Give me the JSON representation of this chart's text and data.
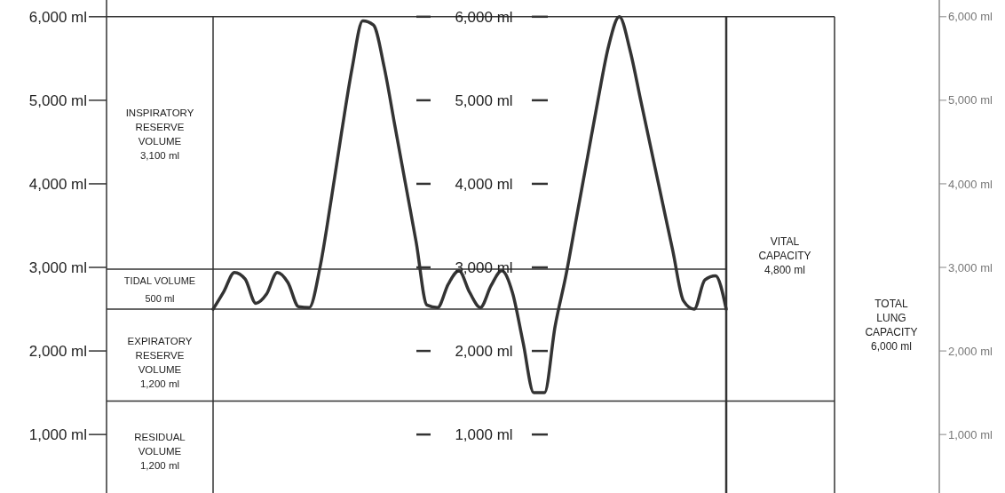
{
  "chart_data": {
    "type": "line",
    "categories": [
      null,
      null,
      null,
      null,
      null,
      null,
      null,
      null,
      null,
      null,
      null,
      null,
      null,
      null,
      null,
      null,
      null,
      null,
      null,
      null,
      null,
      null,
      null,
      null,
      null,
      null,
      null,
      null,
      null,
      null,
      null,
      null,
      null,
      null,
      null,
      null,
      null,
      null,
      null,
      null,
      null,
      null,
      null,
      null,
      null,
      null,
      null,
      null,
      null
    ],
    "series": [
      {
        "color": "#333333",
        "values": [
          2500,
          2710,
          2940,
          2860,
          2570,
          2680,
          2940,
          2820,
          2530,
          2520,
          3000,
          3770,
          4600,
          5380,
          5950,
          5900,
          5400,
          4700,
          4000,
          3300,
          2550,
          2520,
          2800,
          2960,
          2700,
          2520,
          2780,
          2960,
          2700,
          2100,
          1500,
          1500,
          2300,
          2900,
          3600,
          4300,
          5000,
          5650,
          6000,
          5600,
          5000,
          4400,
          3800,
          3200,
          2600,
          2500,
          2850,
          2900,
          2500
        ]
      }
    ],
    "ylim": [
      300,
      6200
    ],
    "yticks": [
      {
        "value": 1000,
        "label": "1,000 ml"
      },
      {
        "value": 2000,
        "label": "2,000 ml"
      },
      {
        "value": 3000,
        "label": "3,000 ml"
      },
      {
        "value": 4000,
        "label": "4,000 ml"
      },
      {
        "value": 5000,
        "label": "5,000 ml"
      },
      {
        "value": 6000,
        "label": "6,000 ml"
      }
    ],
    "y2lim": [
      300,
      6200
    ],
    "y2ticks": [
      {
        "value": 1000,
        "label": "1,000 ml"
      },
      {
        "value": 2000,
        "label": "2,000 ml"
      },
      {
        "value": 3000,
        "label": "3,000 ml"
      },
      {
        "value": 4000,
        "label": "4,000 ml"
      },
      {
        "value": 5000,
        "label": "5,000 ml"
      },
      {
        "value": 6000,
        "label": "6,000 ml"
      }
    ],
    "y3lim": [
      300,
      6200
    ],
    "y3ticks": [
      {
        "value": 1000,
        "label": "1,000 ml"
      },
      {
        "value": 2000,
        "label": "2,000 ml"
      },
      {
        "value": 3000,
        "label": "3,000 ml"
      },
      {
        "value": 4000,
        "label": "4,000 ml"
      },
      {
        "value": 5000,
        "label": "5,000 ml"
      },
      {
        "value": 6000,
        "label": "6,000 ml"
      }
    ],
    "ref_lines": [
      {
        "axis": "y",
        "value": 6000,
        "color": "#333333"
      },
      {
        "axis": "y",
        "value": 2980,
        "color": "#333333"
      },
      {
        "axis": "y",
        "value": 2500,
        "color": "#333333"
      },
      {
        "axis": "y",
        "value": 1400,
        "color": "#333333"
      }
    ],
    "annotations": [
      "INSPIRATORY\nRESERVE\nVOLUME\n3,100 ml",
      "TIDAL VOLUME\n500 ml",
      "EXPIRATORY\nRESERVE\nVOLUME\n1,200 ml",
      "RESIDUAL\nVOLUME\n1,200 ml",
      "VITAL\nCAPACITY\n4,800 ml",
      "TOTAL\nLUNG\nCAPACITY\n6,000 ml"
    ],
    "marker": "none",
    "line_style": "solid",
    "grid": false,
    "legend": false
  }
}
